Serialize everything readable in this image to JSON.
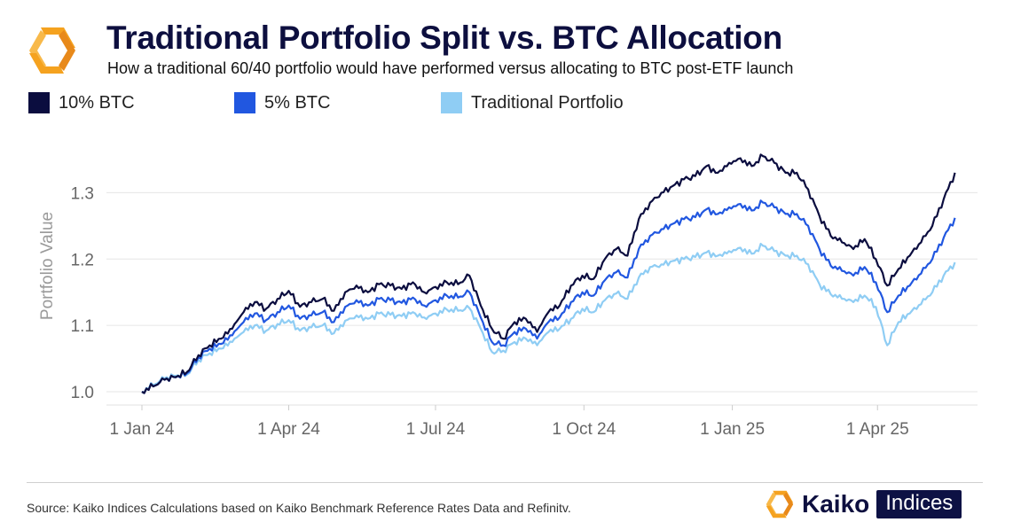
{
  "header": {
    "title": "Traditional Portfolio Split vs. BTC Allocation",
    "subtitle": "How a traditional 60/40 portfolio would have performed versus allocating to BTC post-ETF launch"
  },
  "colors": {
    "btc10": "#0b0d3f",
    "btc5": "#2157e0",
    "traditional": "#8fcdf4",
    "brand_orange": "#f5a21f",
    "gridline": "#e6e6e6"
  },
  "footer": {
    "source": "Source: Kaiko Indices Calculations based on Kaiko Benchmark Reference Rates Data and Refinitv.",
    "brand_name": "Kaiko",
    "brand_tag": "Indices"
  },
  "chart_data": {
    "type": "line",
    "title": "Traditional Portfolio Split vs. BTC Allocation",
    "xlabel": "",
    "ylabel": "Portfolio Value",
    "ylim": [
      0.98,
      1.39
    ],
    "yticks": [
      1.0,
      1.1,
      1.2,
      1.3
    ],
    "ytick_labels": [
      "1.0",
      "1.1",
      "1.2",
      "1.3"
    ],
    "xlim": [
      "2023-12-10",
      "2025-06-02"
    ],
    "xticks": [
      "2024-01-01",
      "2024-04-01",
      "2024-07-01",
      "2024-10-01",
      "2025-01-01",
      "2025-04-01"
    ],
    "xtick_labels": [
      "1 Jan 24",
      "1 Apr 24",
      "1 Jul 24",
      "1 Oct 24",
      "1 Jan 25",
      "1 Apr 25"
    ],
    "grid": true,
    "legend_position": "top-left",
    "dates": [
      "2024-01-01",
      "2024-01-08",
      "2024-01-15",
      "2024-01-22",
      "2024-01-29",
      "2024-02-05",
      "2024-02-12",
      "2024-02-19",
      "2024-02-26",
      "2024-03-04",
      "2024-03-11",
      "2024-03-18",
      "2024-03-25",
      "2024-04-01",
      "2024-04-08",
      "2024-04-15",
      "2024-04-22",
      "2024-04-29",
      "2024-05-06",
      "2024-05-13",
      "2024-05-20",
      "2024-05-27",
      "2024-06-03",
      "2024-06-10",
      "2024-06-17",
      "2024-06-24",
      "2024-07-01",
      "2024-07-08",
      "2024-07-15",
      "2024-07-22",
      "2024-07-29",
      "2024-08-05",
      "2024-08-12",
      "2024-08-19",
      "2024-08-26",
      "2024-09-02",
      "2024-09-09",
      "2024-09-16",
      "2024-09-23",
      "2024-09-30",
      "2024-10-07",
      "2024-10-14",
      "2024-10-21",
      "2024-10-28",
      "2024-11-04",
      "2024-11-11",
      "2024-11-18",
      "2024-11-25",
      "2024-12-02",
      "2024-12-09",
      "2024-12-16",
      "2024-12-23",
      "2024-12-30",
      "2025-01-06",
      "2025-01-13",
      "2025-01-20",
      "2025-01-27",
      "2025-02-03",
      "2025-02-10",
      "2025-02-17",
      "2025-02-24",
      "2025-03-03",
      "2025-03-10",
      "2025-03-17",
      "2025-03-24",
      "2025-03-31",
      "2025-04-07",
      "2025-04-14",
      "2025-04-21",
      "2025-04-28",
      "2025-05-05",
      "2025-05-12",
      "2025-05-19"
    ],
    "series": [
      {
        "name": "10% BTC",
        "color_key": "btc10",
        "values": [
          1.0,
          1.008,
          1.018,
          1.022,
          1.03,
          1.055,
          1.07,
          1.08,
          1.095,
          1.12,
          1.135,
          1.125,
          1.14,
          1.152,
          1.128,
          1.135,
          1.14,
          1.122,
          1.15,
          1.16,
          1.15,
          1.162,
          1.16,
          1.155,
          1.165,
          1.15,
          1.158,
          1.165,
          1.162,
          1.175,
          1.13,
          1.095,
          1.08,
          1.105,
          1.11,
          1.09,
          1.12,
          1.13,
          1.16,
          1.175,
          1.17,
          1.2,
          1.215,
          1.205,
          1.26,
          1.285,
          1.3,
          1.31,
          1.32,
          1.325,
          1.34,
          1.33,
          1.345,
          1.352,
          1.34,
          1.355,
          1.345,
          1.33,
          1.33,
          1.305,
          1.265,
          1.235,
          1.225,
          1.215,
          1.23,
          1.2,
          1.16,
          1.185,
          1.205,
          1.225,
          1.25,
          1.29,
          1.33
        ]
      },
      {
        "name": "5% BTC",
        "color_key": "btc5",
        "values": [
          1.0,
          1.008,
          1.018,
          1.022,
          1.028,
          1.052,
          1.065,
          1.072,
          1.085,
          1.105,
          1.118,
          1.108,
          1.12,
          1.13,
          1.11,
          1.115,
          1.12,
          1.105,
          1.128,
          1.138,
          1.13,
          1.14,
          1.138,
          1.134,
          1.142,
          1.13,
          1.138,
          1.145,
          1.142,
          1.15,
          1.112,
          1.075,
          1.07,
          1.09,
          1.095,
          1.08,
          1.105,
          1.112,
          1.135,
          1.15,
          1.145,
          1.168,
          1.18,
          1.172,
          1.215,
          1.235,
          1.245,
          1.253,
          1.26,
          1.263,
          1.275,
          1.268,
          1.278,
          1.283,
          1.273,
          1.285,
          1.278,
          1.268,
          1.268,
          1.25,
          1.215,
          1.19,
          1.182,
          1.175,
          1.188,
          1.165,
          1.12,
          1.145,
          1.16,
          1.178,
          1.2,
          1.232,
          1.262
        ]
      },
      {
        "name": "Traditional Portfolio",
        "color_key": "traditional",
        "values": [
          1.0,
          1.01,
          1.02,
          1.024,
          1.026,
          1.048,
          1.058,
          1.065,
          1.075,
          1.09,
          1.1,
          1.092,
          1.102,
          1.108,
          1.092,
          1.097,
          1.1,
          1.088,
          1.107,
          1.115,
          1.11,
          1.118,
          1.116,
          1.114,
          1.12,
          1.112,
          1.118,
          1.124,
          1.122,
          1.126,
          1.095,
          1.06,
          1.062,
          1.075,
          1.08,
          1.07,
          1.09,
          1.095,
          1.11,
          1.125,
          1.12,
          1.138,
          1.148,
          1.14,
          1.172,
          1.188,
          1.192,
          1.197,
          1.2,
          1.203,
          1.21,
          1.205,
          1.212,
          1.217,
          1.208,
          1.22,
          1.212,
          1.205,
          1.205,
          1.192,
          1.162,
          1.147,
          1.14,
          1.135,
          1.145,
          1.128,
          1.07,
          1.105,
          1.118,
          1.132,
          1.15,
          1.175,
          1.195
        ]
      }
    ]
  }
}
